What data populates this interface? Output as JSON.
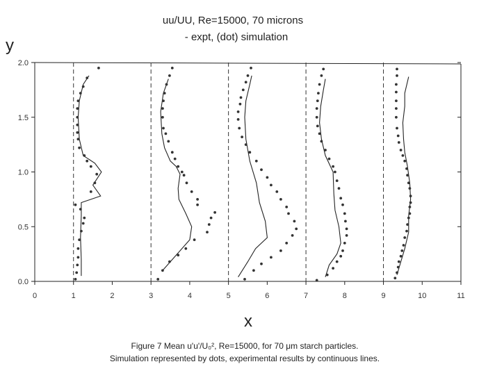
{
  "chart_data": {
    "type": "line",
    "title": "uu/UU, Re=15000, 70 microns",
    "subtitle": "- expt, (dot) simulation",
    "xlabel": "x",
    "ylabel": "y",
    "xlim": [
      0,
      11
    ],
    "ylim": [
      0,
      2.0
    ],
    "xticks": [
      "0",
      "1",
      "2",
      "3",
      "4",
      "5",
      "6",
      "7",
      "8",
      "9",
      "10",
      "11"
    ],
    "yticks": [
      "0.0",
      "0.5",
      "1.0",
      "1.5",
      "2.0"
    ],
    "dashed_reference_lines_x": [
      1,
      3,
      5,
      7,
      9
    ],
    "grid": false,
    "line_color": "#222222",
    "dot_color": "#333333",
    "series": [
      {
        "line": [
          [
            1.2,
            0.05
          ],
          [
            1.2,
            0.2
          ],
          [
            1.18,
            0.4
          ],
          [
            1.2,
            0.6
          ],
          [
            1.2,
            0.72
          ],
          [
            1.7,
            0.78
          ],
          [
            1.5,
            0.88
          ],
          [
            1.72,
            1.0
          ],
          [
            1.55,
            1.08
          ],
          [
            1.25,
            1.15
          ],
          [
            1.15,
            1.3
          ],
          [
            1.12,
            1.5
          ],
          [
            1.15,
            1.65
          ],
          [
            1.25,
            1.8
          ],
          [
            1.4,
            1.88
          ]
        ],
        "dots": [
          [
            1.05,
            0.02
          ],
          [
            1.08,
            0.08
          ],
          [
            1.1,
            0.15
          ],
          [
            1.12,
            0.22
          ],
          [
            1.12,
            0.3
          ],
          [
            1.15,
            0.38
          ],
          [
            1.2,
            0.46
          ],
          [
            1.25,
            0.53
          ],
          [
            1.28,
            0.58
          ],
          [
            1.18,
            0.66
          ],
          [
            1.05,
            0.7
          ],
          [
            1.45,
            0.82
          ],
          [
            1.55,
            0.9
          ],
          [
            1.6,
            0.98
          ],
          [
            1.45,
            1.05
          ],
          [
            1.35,
            1.1
          ],
          [
            1.28,
            1.15
          ],
          [
            1.15,
            1.22
          ],
          [
            1.12,
            1.3
          ],
          [
            1.1,
            1.36
          ],
          [
            1.1,
            1.43
          ],
          [
            1.1,
            1.5
          ],
          [
            1.1,
            1.58
          ],
          [
            1.12,
            1.65
          ],
          [
            1.18,
            1.72
          ],
          [
            1.25,
            1.78
          ],
          [
            1.35,
            1.86
          ],
          [
            1.65,
            1.95
          ]
        ]
      },
      {
        "line": [
          [
            3.3,
            0.1
          ],
          [
            3.6,
            0.22
          ],
          [
            4.0,
            0.38
          ],
          [
            4.05,
            0.5
          ],
          [
            3.9,
            0.62
          ],
          [
            3.72,
            0.75
          ],
          [
            3.7,
            0.85
          ],
          [
            3.75,
            0.98
          ],
          [
            3.65,
            1.05
          ],
          [
            3.5,
            1.1
          ],
          [
            3.35,
            1.22
          ],
          [
            3.28,
            1.35
          ],
          [
            3.25,
            1.55
          ],
          [
            3.32,
            1.72
          ],
          [
            3.45,
            1.85
          ]
        ],
        "dots": [
          [
            3.18,
            0.02
          ],
          [
            3.3,
            0.1
          ],
          [
            3.48,
            0.18
          ],
          [
            3.7,
            0.24
          ],
          [
            3.9,
            0.3
          ],
          [
            4.12,
            0.38
          ],
          [
            4.65,
            0.63
          ],
          [
            4.55,
            0.58
          ],
          [
            4.5,
            0.52
          ],
          [
            4.45,
            0.45
          ],
          [
            4.2,
            0.7
          ],
          [
            4.2,
            0.75
          ],
          [
            4.05,
            0.82
          ],
          [
            3.92,
            0.9
          ],
          [
            3.85,
            0.97
          ],
          [
            3.8,
            1.0
          ],
          [
            3.7,
            1.05
          ],
          [
            3.62,
            1.12
          ],
          [
            3.55,
            1.18
          ],
          [
            3.45,
            1.28
          ],
          [
            3.38,
            1.35
          ],
          [
            3.32,
            1.4
          ],
          [
            3.3,
            1.5
          ],
          [
            3.3,
            1.58
          ],
          [
            3.32,
            1.65
          ],
          [
            3.35,
            1.72
          ],
          [
            3.4,
            1.8
          ],
          [
            3.48,
            1.88
          ],
          [
            3.55,
            1.95
          ]
        ]
      },
      {
        "line": [
          [
            5.25,
            0.04
          ],
          [
            5.5,
            0.18
          ],
          [
            5.7,
            0.3
          ],
          [
            6.0,
            0.4
          ],
          [
            5.95,
            0.55
          ],
          [
            5.8,
            0.72
          ],
          [
            5.72,
            0.9
          ],
          [
            5.55,
            1.1
          ],
          [
            5.45,
            1.3
          ],
          [
            5.42,
            1.5
          ],
          [
            5.45,
            1.65
          ],
          [
            5.55,
            1.8
          ],
          [
            5.6,
            1.88
          ]
        ],
        "dots": [
          [
            5.42,
            0.02
          ],
          [
            5.65,
            0.1
          ],
          [
            5.85,
            0.16
          ],
          [
            6.1,
            0.22
          ],
          [
            6.35,
            0.28
          ],
          [
            6.5,
            0.35
          ],
          [
            6.65,
            0.42
          ],
          [
            6.75,
            0.48
          ],
          [
            6.7,
            0.55
          ],
          [
            6.55,
            0.62
          ],
          [
            6.5,
            0.68
          ],
          [
            6.35,
            0.75
          ],
          [
            6.25,
            0.82
          ],
          [
            6.1,
            0.88
          ],
          [
            6.0,
            0.95
          ],
          [
            5.85,
            1.02
          ],
          [
            5.72,
            1.1
          ],
          [
            5.55,
            1.18
          ],
          [
            5.45,
            1.25
          ],
          [
            5.35,
            1.32
          ],
          [
            5.28,
            1.4
          ],
          [
            5.25,
            1.48
          ],
          [
            5.25,
            1.55
          ],
          [
            5.3,
            1.62
          ],
          [
            5.32,
            1.68
          ],
          [
            5.38,
            1.75
          ],
          [
            5.45,
            1.82
          ],
          [
            5.5,
            1.88
          ],
          [
            5.58,
            1.95
          ]
        ]
      },
      {
        "line": [
          [
            7.5,
            0.04
          ],
          [
            7.6,
            0.15
          ],
          [
            7.8,
            0.25
          ],
          [
            7.9,
            0.35
          ],
          [
            7.85,
            0.5
          ],
          [
            7.75,
            0.65
          ],
          [
            7.72,
            0.8
          ],
          [
            7.7,
            1.0
          ],
          [
            7.5,
            1.15
          ],
          [
            7.4,
            1.3
          ],
          [
            7.35,
            1.45
          ],
          [
            7.38,
            1.6
          ],
          [
            7.45,
            1.75
          ],
          [
            7.5,
            1.85
          ]
        ],
        "dots": [
          [
            7.28,
            0.01
          ],
          [
            7.55,
            0.06
          ],
          [
            7.7,
            0.12
          ],
          [
            7.8,
            0.18
          ],
          [
            7.9,
            0.23
          ],
          [
            7.95,
            0.28
          ],
          [
            8.0,
            0.35
          ],
          [
            8.05,
            0.42
          ],
          [
            8.05,
            0.48
          ],
          [
            8.02,
            0.55
          ],
          [
            8.0,
            0.62
          ],
          [
            7.95,
            0.7
          ],
          [
            7.9,
            0.76
          ],
          [
            7.85,
            0.85
          ],
          [
            7.8,
            0.92
          ],
          [
            7.75,
            1.0
          ],
          [
            7.7,
            1.05
          ],
          [
            7.6,
            1.12
          ],
          [
            7.5,
            1.2
          ],
          [
            7.4,
            1.28
          ],
          [
            7.35,
            1.35
          ],
          [
            7.3,
            1.42
          ],
          [
            7.28,
            1.5
          ],
          [
            7.28,
            1.58
          ],
          [
            7.3,
            1.65
          ],
          [
            7.32,
            1.72
          ],
          [
            7.35,
            1.8
          ],
          [
            7.4,
            1.88
          ],
          [
            7.45,
            1.94
          ]
        ]
      },
      {
        "line": [
          [
            9.35,
            0.06
          ],
          [
            9.45,
            0.18
          ],
          [
            9.55,
            0.3
          ],
          [
            9.65,
            0.45
          ],
          [
            9.65,
            0.6
          ],
          [
            9.7,
            0.75
          ],
          [
            9.68,
            0.9
          ],
          [
            9.62,
            1.05
          ],
          [
            9.55,
            1.18
          ],
          [
            9.52,
            1.3
          ],
          [
            9.5,
            1.45
          ],
          [
            9.55,
            1.6
          ],
          [
            9.55,
            1.72
          ],
          [
            9.65,
            1.87
          ]
        ],
        "dots": [
          [
            9.3,
            0.03
          ],
          [
            9.35,
            0.08
          ],
          [
            9.38,
            0.13
          ],
          [
            9.4,
            0.18
          ],
          [
            9.45,
            0.23
          ],
          [
            9.48,
            0.28
          ],
          [
            9.52,
            0.33
          ],
          [
            9.55,
            0.4
          ],
          [
            9.6,
            0.46
          ],
          [
            9.62,
            0.52
          ],
          [
            9.65,
            0.58
          ],
          [
            9.68,
            0.62
          ],
          [
            9.68,
            0.68
          ],
          [
            9.7,
            0.72
          ],
          [
            9.7,
            0.78
          ],
          [
            9.68,
            0.85
          ],
          [
            9.65,
            0.9
          ],
          [
            9.62,
            0.97
          ],
          [
            9.6,
            1.03
          ],
          [
            9.55,
            1.1
          ],
          [
            9.5,
            1.15
          ],
          [
            9.45,
            1.2
          ],
          [
            9.4,
            1.27
          ],
          [
            9.38,
            1.33
          ],
          [
            9.35,
            1.4
          ],
          [
            9.33,
            1.5
          ],
          [
            9.33,
            1.58
          ],
          [
            9.33,
            1.65
          ],
          [
            9.33,
            1.73
          ],
          [
            9.33,
            1.8
          ],
          [
            9.35,
            1.88
          ],
          [
            9.35,
            1.94
          ]
        ]
      }
    ]
  },
  "caption": {
    "line1": "Figure 7  Mean u'u'/U₀², Re=15000, for 70 μm starch particles.",
    "line2": "Simulation represented by dots, experimental results by continuous lines."
  }
}
